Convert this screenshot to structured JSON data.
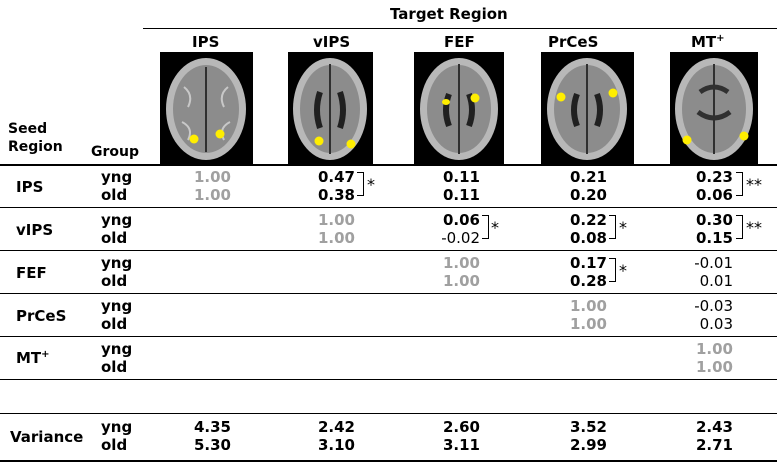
{
  "header": {
    "target_region": "Target Region",
    "seed_region": "Seed\nRegion",
    "group": "Group"
  },
  "columns": [
    "IPS",
    "vIPS",
    "FEF",
    "PrCeS",
    "MT"
  ],
  "mt_sup": "+",
  "groups": [
    "yng",
    "old"
  ],
  "rows": [
    {
      "seed": "IPS",
      "yng": [
        "1.00",
        "0.47",
        "0.11",
        "0.21",
        "0.23"
      ],
      "old": [
        "1.00",
        "0.38",
        "0.11",
        "0.20",
        "0.06"
      ]
    },
    {
      "seed": "vIPS",
      "yng": [
        "",
        "1.00",
        "0.06",
        "0.22",
        "0.30"
      ],
      "old": [
        "",
        "1.00",
        "-0.02",
        "0.08",
        "0.15"
      ]
    },
    {
      "seed": "FEF",
      "yng": [
        "",
        "",
        "1.00",
        "0.17",
        "-0.01"
      ],
      "old": [
        "",
        "",
        "1.00",
        "0.28",
        "0.01"
      ]
    },
    {
      "seed": "PrCeS",
      "yng": [
        "",
        "",
        "",
        "1.00",
        "-0.03"
      ],
      "old": [
        "",
        "",
        "",
        "1.00",
        "0.03"
      ]
    },
    {
      "seed": "MT",
      "yng": [
        "",
        "",
        "",
        "",
        "1.00"
      ],
      "old": [
        "",
        "",
        "",
        "",
        "1.00"
      ]
    }
  ],
  "variance": {
    "label": "Variance",
    "yng": [
      "4.35",
      "2.42",
      "2.60",
      "3.52",
      "2.43"
    ],
    "old": [
      "5.30",
      "3.10",
      "3.11",
      "2.99",
      "2.71"
    ]
  },
  "stars": {
    "single": "*",
    "double": "**"
  },
  "colors": {
    "diagonal": "#a0a0a0",
    "roi": "#ffee00"
  }
}
